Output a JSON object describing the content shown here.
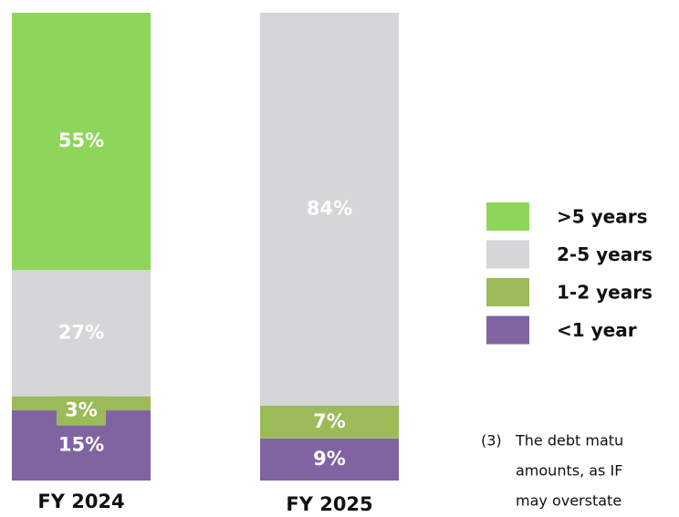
{
  "chart_data": {
    "type": "stacked-bar",
    "categories": [
      "FY 2024",
      "FY 2025"
    ],
    "series": [
      {
        "name": "<1 year",
        "color": "#8064a2",
        "values": [
          15,
          9
        ],
        "value_labels": [
          "15%",
          "9%"
        ]
      },
      {
        "name": "1-2 years",
        "color": "#9bbb59",
        "values": [
          3,
          7
        ],
        "value_labels": [
          "3%",
          "7%"
        ]
      },
      {
        "name": "2-5 years",
        "color": "#d5d6d8",
        "values": [
          27,
          84
        ],
        "value_labels": [
          "27%",
          "84%"
        ]
      },
      {
        "name": ">5 years",
        "color": "#8ed659",
        "values": [
          55,
          0
        ],
        "value_labels": [
          "55%",
          null
        ]
      }
    ],
    "footnote": {
      "marker": "(3)",
      "lines": [
        "The debt matu",
        "amounts, as IF",
        "may overstate"
      ]
    }
  }
}
